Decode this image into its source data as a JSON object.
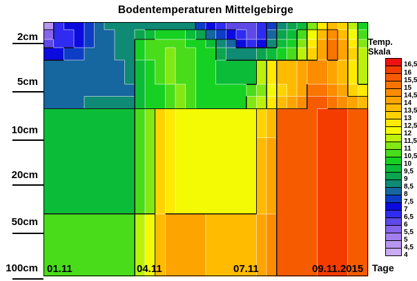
{
  "title": "Bodentemperaturen Mittelgebirge",
  "legend": {
    "title": "Temp. Skala"
  },
  "axes": {
    "x_label": "Tage",
    "x_ticks": [
      "01.11",
      "04.11",
      "07.11",
      "09.11.2015"
    ],
    "y_ticks": [
      "2cm",
      "5cm",
      "10cm",
      "20cm",
      "50cm",
      "100cm"
    ]
  },
  "chart_data": {
    "type": "heatmap",
    "title": "Bodentemperaturen Mittelgebirge",
    "xlabel": "Tage",
    "ylabel_ticks_depth": [
      "2cm",
      "5cm",
      "10cm",
      "20cm",
      "50cm",
      "100cm"
    ],
    "x_tick_labels": [
      "01.11",
      "04.11",
      "07.11",
      "09.11.2015"
    ],
    "value_unit": "Temp. Skala",
    "value_range": [
      4,
      16.5
    ],
    "value_step": 0.5,
    "palette": [
      {
        "value": 4,
        "label": "4",
        "color": "#c9aaf5"
      },
      {
        "value": 4.5,
        "label": "4,5",
        "color": "#b696f1"
      },
      {
        "value": 5,
        "label": "5",
        "color": "#a37fee"
      },
      {
        "value": 5.5,
        "label": "5,5",
        "color": "#8765ea"
      },
      {
        "value": 6,
        "label": "6",
        "color": "#5e48e6"
      },
      {
        "value": 6.5,
        "label": "6,5",
        "color": "#2f2bf0"
      },
      {
        "value": 7,
        "label": "7",
        "color": "#0b0be0"
      },
      {
        "value": 7.5,
        "label": "7,5",
        "color": "#0d3dc6"
      },
      {
        "value": 8,
        "label": "8",
        "color": "#16669f"
      },
      {
        "value": 8.5,
        "label": "8,5",
        "color": "#0f8a74"
      },
      {
        "value": 9,
        "label": "9",
        "color": "#0ca44e"
      },
      {
        "value": 9.5,
        "label": "9,5",
        "color": "#0bbc38"
      },
      {
        "value": 10,
        "label": "10",
        "color": "#16d122"
      },
      {
        "value": 10.5,
        "label": "10,5",
        "color": "#49dc1b"
      },
      {
        "value": 11,
        "label": "11",
        "color": "#82e713"
      },
      {
        "value": 11.5,
        "label": "11,5",
        "color": "#bbf10b"
      },
      {
        "value": 12,
        "label": "12",
        "color": "#f4fa03"
      },
      {
        "value": 12.5,
        "label": "12,5",
        "color": "#ffea00"
      },
      {
        "value": 13,
        "label": "13",
        "color": "#ffd300"
      },
      {
        "value": 13.5,
        "label": "13,5",
        "color": "#ffbb00"
      },
      {
        "value": 14,
        "label": "14",
        "color": "#fea400"
      },
      {
        "value": 14.5,
        "label": "14,5",
        "color": "#fc8c00"
      },
      {
        "value": 15,
        "label": "15",
        "color": "#f97400"
      },
      {
        "value": 15.5,
        "label": "15,5",
        "color": "#f75b00"
      },
      {
        "value": 16,
        "label": "16",
        "color": "#f43c00"
      },
      {
        "value": 16.5,
        "label": "16,5",
        "color": "#ee1111"
      }
    ],
    "row_bounds": [
      0,
      0.03,
      0.068,
      0.101,
      0.15,
      0.245,
      0.292,
      0.341,
      0.455,
      0.755,
      1.0
    ],
    "grid_temps": [
      [
        4.5,
        6.5,
        7,
        7,
        7.5,
        8,
        8.5,
        8.5,
        8.5,
        8.5,
        8.5,
        8.5,
        8.5,
        8.5,
        8.5,
        7.5,
        7,
        6.5,
        6,
        6,
        6,
        6.5,
        7.5,
        8.5,
        9,
        9.5,
        11,
        12.5,
        13.5,
        13,
        11.5,
        10
      ],
      [
        5.5,
        6.5,
        6.5,
        7,
        7.5,
        8,
        8,
        8.5,
        8.5,
        9,
        9.5,
        10,
        10,
        10,
        9.5,
        9,
        8,
        7.5,
        7,
        6.5,
        6,
        6.5,
        8,
        9,
        9.5,
        10.5,
        12,
        13.5,
        14.5,
        13.5,
        12,
        10.5
      ],
      [
        6,
        6.5,
        6.5,
        7,
        7.5,
        8,
        8,
        8.5,
        8.5,
        10,
        10.5,
        10.5,
        10.5,
        10.5,
        10,
        10,
        9.5,
        8.5,
        8,
        7,
        6.5,
        7,
        8.5,
        9.5,
        10,
        11,
        12.5,
        14,
        15,
        14,
        12.5,
        11
      ],
      [
        7,
        7,
        7.5,
        7.5,
        8,
        8,
        8,
        8.5,
        8.5,
        10,
        10.5,
        10.5,
        11,
        10.5,
        10.5,
        10,
        10,
        9,
        8.5,
        8.5,
        8.5,
        9,
        9.5,
        10,
        10.5,
        11.5,
        13,
        14,
        15,
        14,
        13,
        11.5
      ],
      [
        8,
        8,
        8,
        8,
        8,
        8,
        8,
        8,
        8.5,
        9.5,
        10,
        10.5,
        11,
        10.5,
        10.5,
        10,
        10,
        9.5,
        9.5,
        9.5,
        9.5,
        11.5,
        12.5,
        13.5,
        13.5,
        14,
        14.5,
        14.5,
        14,
        13.5,
        12.5,
        11.5
      ],
      [
        8,
        8,
        8,
        8,
        8,
        8,
        8,
        8,
        8,
        9.5,
        10,
        10,
        10.5,
        11,
        10.5,
        10,
        10,
        10,
        10,
        10,
        10.5,
        11,
        12,
        13,
        13.5,
        14,
        15,
        15,
        14.5,
        14,
        13,
        12.5
      ],
      [
        8,
        8,
        8,
        8,
        8.5,
        8.5,
        8.5,
        8.5,
        8.5,
        9.5,
        10,
        10,
        10.5,
        11,
        10.5,
        10,
        10,
        10,
        10,
        10,
        11,
        11.5,
        12.5,
        13.5,
        14,
        14.5,
        15.5,
        15.5,
        15,
        14.5,
        14,
        13.5
      ],
      [
        9.5,
        9.5,
        9.5,
        9.5,
        9.5,
        9.5,
        9.5,
        9.5,
        9.5,
        10.5,
        11,
        13,
        12.5,
        12,
        12,
        12,
        12,
        12,
        12,
        12,
        12,
        13,
        13.5,
        15.5,
        15.5,
        15.5,
        15.5,
        16,
        16,
        16,
        15.5,
        15.5
      ],
      [
        9.5,
        9.5,
        9.5,
        9.5,
        9.5,
        9.5,
        9.5,
        9.5,
        9.5,
        10.5,
        11,
        13,
        12.5,
        12,
        12,
        12,
        12,
        12,
        12,
        12,
        12,
        13.5,
        14,
        15.5,
        15.5,
        15.5,
        15.5,
        16,
        16,
        16,
        15.5,
        15.5
      ],
      [
        10.5,
        10.5,
        10.5,
        10.5,
        10.5,
        10.5,
        10.5,
        10.5,
        10.5,
        11.5,
        12,
        13.5,
        14,
        14,
        14,
        14,
        13.5,
        13.5,
        13.5,
        13.5,
        13.5,
        14,
        14.5,
        15.5,
        15.5,
        15.5,
        15.5,
        16,
        16,
        16,
        15.5,
        15.5
      ]
    ]
  }
}
